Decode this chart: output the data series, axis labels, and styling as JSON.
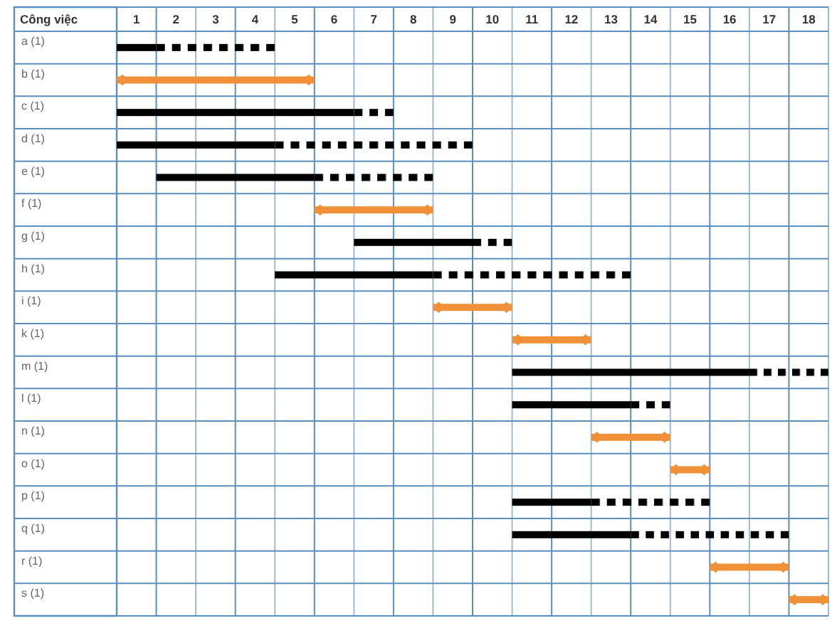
{
  "chart_data": {
    "type": "bar",
    "orientation": "horizontal",
    "ylabel": "Công việc",
    "categories": [
      "a (1)",
      "b (1)",
      "c (1)",
      "d (1)",
      "e (1)",
      "f (1)",
      "g (1)",
      "h (1)",
      "i (1)",
      "k (1)",
      "m (1)",
      "l (1)",
      "n (1)",
      "o (1)",
      "p (1)",
      "q (1)",
      "r (1)",
      "s (1)"
    ],
    "series": [
      {
        "color": "#000000",
        "line_style": "solid",
        "base": [
          0,
          null,
          0,
          0,
          1,
          null,
          6,
          4,
          null,
          null,
          10,
          10,
          null,
          null,
          10,
          10,
          null,
          null
        ],
        "values": [
          1,
          null,
          6,
          4,
          4,
          null,
          3,
          4,
          null,
          null,
          6,
          3,
          null,
          null,
          2,
          3,
          null,
          null
        ]
      },
      {
        "color": "#000000",
        "line_style": "dashed",
        "base": [
          1,
          null,
          6,
          4,
          5,
          null,
          9,
          8,
          null,
          null,
          16,
          13,
          null,
          null,
          12,
          13,
          null,
          null
        ],
        "values": [
          3,
          null,
          1,
          5,
          3,
          null,
          1,
          5,
          null,
          null,
          2,
          1,
          null,
          null,
          3,
          4,
          null,
          null
        ]
      },
      {
        "color": "#f0913a",
        "line_style": "solid",
        "marker": "diamond",
        "base": [
          null,
          0,
          null,
          null,
          null,
          5,
          null,
          null,
          8,
          10,
          null,
          null,
          12,
          14,
          null,
          null,
          15,
          17
        ],
        "values": [
          null,
          5,
          null,
          null,
          null,
          3,
          null,
          null,
          2,
          2,
          null,
          null,
          2,
          1,
          null,
          null,
          2,
          1
        ]
      }
    ],
    "xlim": [
      0,
      18
    ],
    "xticks": [
      {
        "value": 0,
        "label": null
      },
      {
        "value": 0.5,
        "label": "1"
      },
      {
        "value": 1,
        "label": null
      },
      {
        "value": 1.5,
        "label": "2"
      },
      {
        "value": 2,
        "label": null
      },
      {
        "value": 2.5,
        "label": "3"
      },
      {
        "value": 3,
        "label": null
      },
      {
        "value": 3.5,
        "label": "4"
      },
      {
        "value": 4,
        "label": null
      },
      {
        "value": 4.5,
        "label": "5"
      },
      {
        "value": 5,
        "label": null
      },
      {
        "value": 5.5,
        "label": "6"
      },
      {
        "value": 6,
        "label": null
      },
      {
        "value": 6.5,
        "label": "7"
      },
      {
        "value": 7,
        "label": null
      },
      {
        "value": 7.5,
        "label": "8"
      },
      {
        "value": 8,
        "label": null
      },
      {
        "value": 8.5,
        "label": "9"
      },
      {
        "value": 9,
        "label": null
      },
      {
        "value": 9.5,
        "label": "10"
      },
      {
        "value": 10,
        "label": null
      },
      {
        "value": 10.5,
        "label": "11"
      },
      {
        "value": 11,
        "label": null
      },
      {
        "value": 11.5,
        "label": "12"
      },
      {
        "value": 12,
        "label": null
      },
      {
        "value": 12.5,
        "label": "13"
      },
      {
        "value": 13,
        "label": null
      },
      {
        "value": 13.5,
        "label": "14"
      },
      {
        "value": 14,
        "label": null
      },
      {
        "value": 14.5,
        "label": "15"
      },
      {
        "value": 15,
        "label": null
      },
      {
        "value": 15.5,
        "label": "16"
      },
      {
        "value": 16,
        "label": null
      },
      {
        "value": 16.5,
        "label": "17"
      },
      {
        "value": 17,
        "label": null
      },
      {
        "value": 17.5,
        "label": "18"
      },
      {
        "value": 18,
        "label": null
      }
    ],
    "grid": true
  }
}
